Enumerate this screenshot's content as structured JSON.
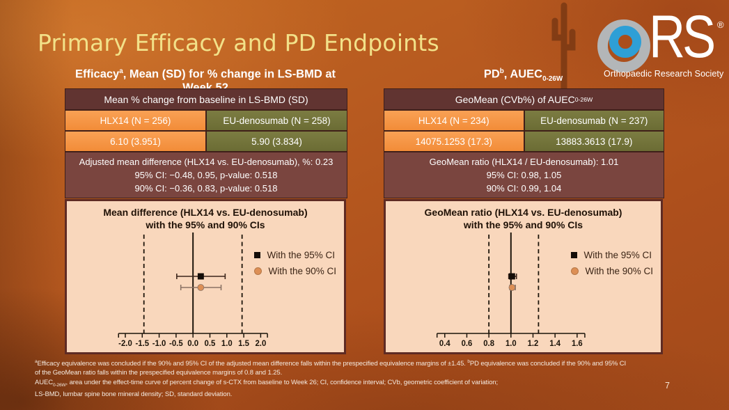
{
  "title": "Primary Efficacy and PD Endpoints",
  "page_number": "7",
  "logo": {
    "letters": "RS",
    "registered": "®",
    "caption": "Orthopaedic Research Society"
  },
  "left_section": {
    "subtitle": {
      "pre": "Efficacy",
      "sup": "a",
      "post": ", Mean (SD) for % change in LS-BMD at Week 52"
    },
    "table": {
      "header": "Mean % change from baseline in LS-BMD (SD)",
      "col1_head": "HLX14 (N = 256)",
      "col2_head": "EU-denosumab (N = 258)",
      "col1_val": "6.10 (3.951)",
      "col2_val": "5.90 (3.834)"
    },
    "stats": {
      "line1": "Adjusted mean difference (HLX14 vs. EU-denosumab), %: 0.23",
      "line2": "95% CI: −0.48, 0.95, p-value: 0.518",
      "line3": "90% CI: −0.36, 0.83, p-value: 0.518"
    }
  },
  "right_section": {
    "subtitle": {
      "pre": "PD",
      "sup": "b",
      "mid": ", AUEC",
      "sub": "0-26W"
    },
    "table": {
      "header_pre": "GeoMean (CVb%) of AUEC",
      "header_sub": "0-26W",
      "col1_head": "HLX14 (N = 234)",
      "col2_head": "EU-denosumab (N = 237)",
      "col1_val": "14075.1253 (17.3)",
      "col2_val": "13883.3613 (17.9)"
    },
    "stats": {
      "line1": "GeoMean ratio (HLX14 / EU-denosumab): 1.01",
      "line2": "95% CI: 0.98, 1.05",
      "line3": "90% CI: 0.99, 1.04"
    }
  },
  "chart_data": [
    {
      "type": "forest",
      "title_line1": "Mean difference (HLX14 vs. EU-denosumab)",
      "title_line2": "with the 95% and 90% CIs",
      "axis": {
        "min": -2.2,
        "max": 2.2,
        "ticks": [
          -2.0,
          -1.5,
          -1.0,
          -0.5,
          0.0,
          0.5,
          1.0,
          1.5,
          2.0
        ],
        "tick_labels": [
          "-2.0",
          "-1.5",
          "-1.0",
          "-0.5",
          "0.0",
          "0.5",
          "1.0",
          "1.5",
          "2.0"
        ]
      },
      "reference_line": 0.0,
      "equivalence_margins": [
        -1.45,
        1.45
      ],
      "grid": false,
      "legend_position": "right",
      "series": [
        {
          "name": "With the 95% CI",
          "marker": "square",
          "estimate": 0.23,
          "ci_low": -0.48,
          "ci_high": 0.95
        },
        {
          "name": "With the 90% CI",
          "marker": "circle",
          "estimate": 0.23,
          "ci_low": -0.36,
          "ci_high": 0.83
        }
      ]
    },
    {
      "type": "forest",
      "title_line1": "GeoMean ratio (HLX14 vs. EU-denosumab)",
      "title_line2": "with the 95% and 90% CIs",
      "axis": {
        "min": 0.33,
        "max": 1.67,
        "ticks": [
          0.4,
          0.6,
          0.8,
          1.0,
          1.2,
          1.4,
          1.6
        ],
        "tick_labels": [
          "0.4",
          "0.6",
          "0.8",
          "1.0",
          "1.2",
          "1.4",
          "1.6"
        ]
      },
      "reference_line": 1.0,
      "equivalence_margins": [
        0.8,
        1.25
      ],
      "grid": false,
      "legend_position": "right",
      "series": [
        {
          "name": "With the 95% CI",
          "marker": "square",
          "estimate": 1.01,
          "ci_low": 0.98,
          "ci_high": 1.05
        },
        {
          "name": "With the 90% CI",
          "marker": "circle",
          "estimate": 1.01,
          "ci_low": 0.99,
          "ci_high": 1.04
        }
      ]
    }
  ],
  "footnotes": {
    "l1_sup_a": "a",
    "l1_a": "Efficacy equivalence was concluded if the 90% and 95% CI of the adjusted mean difference falls within the prespecified equivalence margins of ±1.45. ",
    "l1_sup_b": "b",
    "l1_b": "PD equivalence was concluded if the 90% and 95% CI",
    "l2": "of the GeoMean ratio falls within the prespecified equivalence margins of 0.8 and 1.25.",
    "l3_pre": "AUEC",
    "l3_sub": "0-26W",
    "l3_post": ", area under the effect-time curve of percent change of s-CTX from baseline to Week 26; CI, confidence interval; CVb, geometric  coefficient of variation;",
    "l4": "LS-BMD,  lumbar spine bone mineral density; SD,  standard deviation."
  },
  "colors": {
    "slide_bg": "#b2551e",
    "title_gold": "#F2E189",
    "accent_orange": "#F79646",
    "olive": "#71713A",
    "maroon_header": "#613431",
    "maroon_stats": "#7A453F",
    "panel_bg": "#F9D7BC",
    "panel_border": "#5E2B24",
    "plot_line": "#1b1309",
    "plot_text": "#1b1309",
    "ci95_line": "#3a241a",
    "ci90_line": "#8a7265",
    "marker95": "#140d08",
    "marker90": "#DD8F55",
    "logo_blue": "#2E9FD6",
    "logo_gray": "#b3b6b8"
  }
}
